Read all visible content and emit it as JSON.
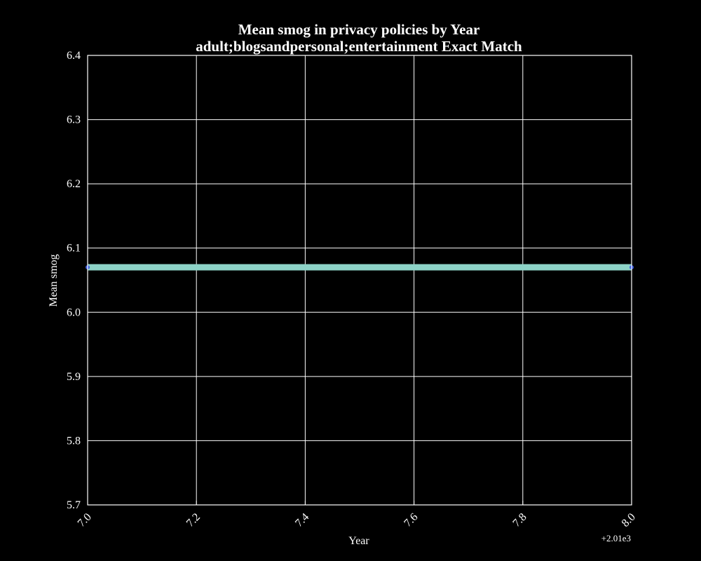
{
  "chart_data": {
    "type": "line",
    "title": "Mean smog in privacy policies by Year",
    "subtitle": "adult;blogsandpersonal;entertainment Exact Match",
    "xlabel": "Year",
    "ylabel": "Mean smog",
    "x_offset_label": "+2.01e3",
    "xlim": [
      7.0,
      8.0
    ],
    "ylim": [
      5.7,
      6.4
    ],
    "x_ticks": [
      "7.0",
      "7.2",
      "7.4",
      "7.6",
      "7.8",
      "8.0"
    ],
    "y_ticks": [
      "5.7",
      "5.8",
      "5.9",
      "6.0",
      "6.1",
      "6.2",
      "6.3",
      "6.4"
    ],
    "grid": true,
    "series": [
      {
        "x": [
          7.0,
          8.0
        ],
        "y": [
          6.07,
          6.07
        ],
        "color": "#8dd3c7",
        "marker_color": "#3b5bdb"
      }
    ],
    "colors": {
      "background": "#000000",
      "axes": "#ffffff",
      "grid": "#ffffff"
    }
  }
}
